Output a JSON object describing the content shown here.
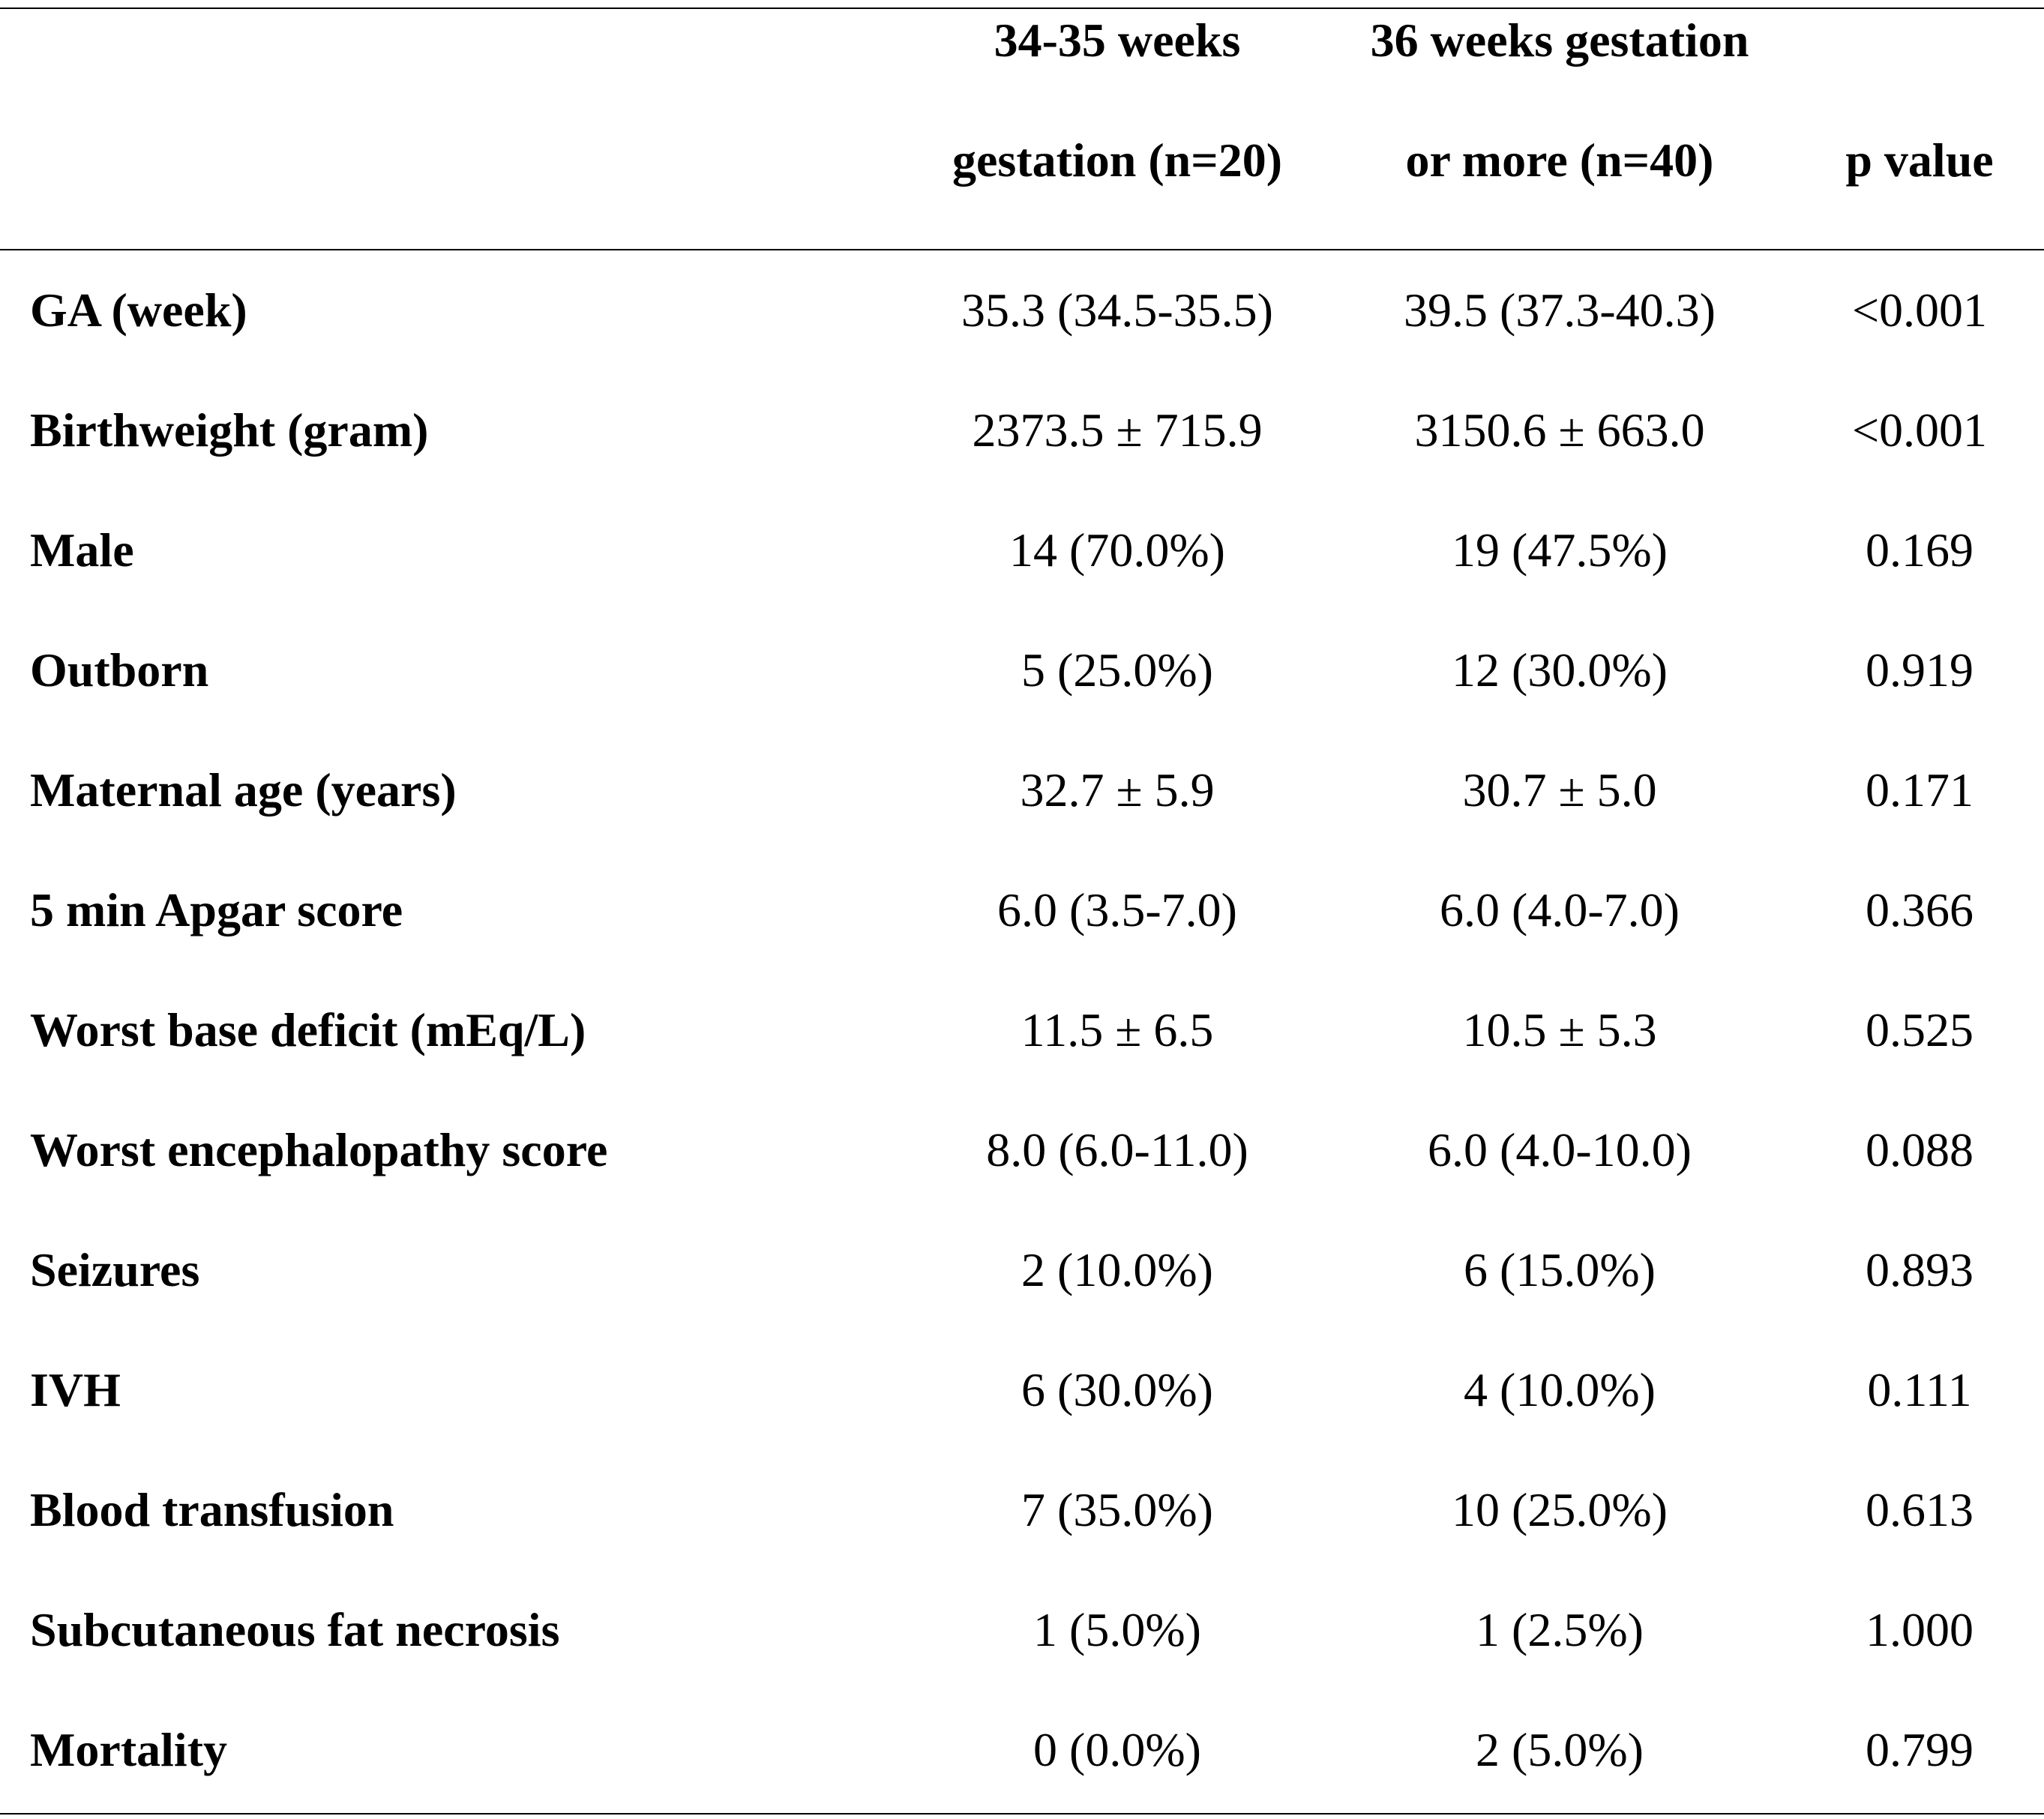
{
  "header": {
    "col1_line1": "34-35 weeks",
    "col1_line2": "gestation (n=20)",
    "col2_line1": "36 weeks gestation",
    "col2_line2": "or more (n=40)",
    "col3_line2": "p value"
  },
  "rows": [
    {
      "label": "GA (week)",
      "g1": "35.3 (34.5-35.5)",
      "g2": "39.5 (37.3-40.3)",
      "p": "<0.001"
    },
    {
      "label": "Birthweight (gram)",
      "g1": "2373.5 ± 715.9",
      "g2": "3150.6 ± 663.0",
      "p": "<0.001"
    },
    {
      "label": "Male",
      "g1": "14 (70.0%)",
      "g2": "19 (47.5%)",
      "p": "0.169"
    },
    {
      "label": "Outborn",
      "g1": "5 (25.0%)",
      "g2": "12 (30.0%)",
      "p": "0.919"
    },
    {
      "label": "Maternal age (years)",
      "g1": "32.7 ± 5.9",
      "g2": "30.7 ± 5.0",
      "p": "0.171"
    },
    {
      "label": "5 min Apgar score",
      "g1": "6.0 (3.5-7.0)",
      "g2": "6.0 (4.0-7.0)",
      "p": "0.366"
    },
    {
      "label": "Worst base deficit (mEq/L)",
      "g1": "11.5 ± 6.5",
      "g2": "10.5 ± 5.3",
      "p": "0.525"
    },
    {
      "label": "Worst encephalopathy score",
      "g1": "8.0 (6.0-11.0)",
      "g2": "6.0 (4.0-10.0)",
      "p": "0.088"
    },
    {
      "label": "Seizures",
      "g1": "2 (10.0%)",
      "g2": "6 (15.0%)",
      "p": "0.893"
    },
    {
      "label": "IVH",
      "g1": "6 (30.0%)",
      "g2": "4 (10.0%)",
      "p": "0.111"
    },
    {
      "label": "Blood transfusion",
      "g1": "7 (35.0%)",
      "g2": "10 (25.0%)",
      "p": "0.613"
    },
    {
      "label": "Subcutaneous fat necrosis",
      "g1": "1 (5.0%)",
      "g2": "1 (2.5%)",
      "p": "1.000"
    },
    {
      "label": "Mortality",
      "g1": "0 (0.0%)",
      "g2": "2 (5.0%)",
      "p": "0.799"
    }
  ]
}
